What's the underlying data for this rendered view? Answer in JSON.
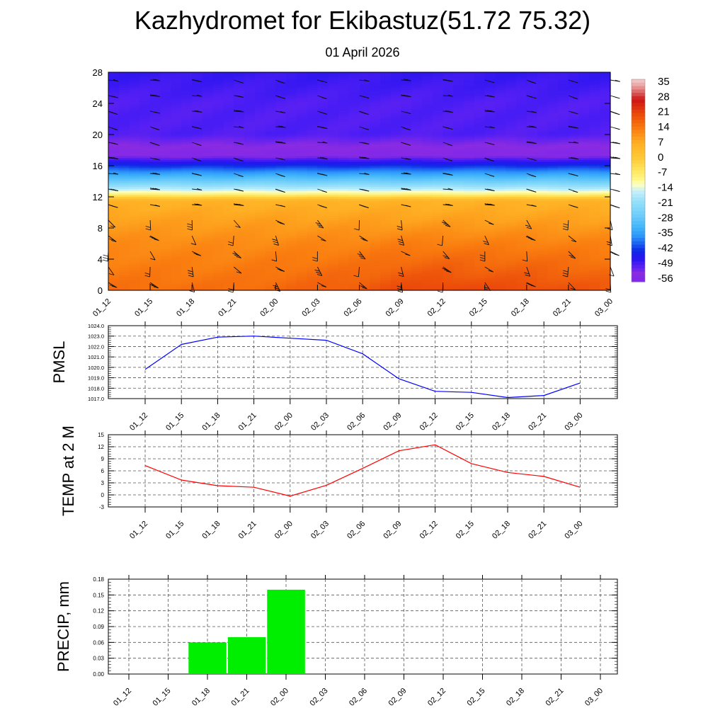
{
  "title": "Kazhydromet for Ekibastuz(51.72 75.32)",
  "subtitle": "01 April 2026",
  "time_labels": [
    "01_12",
    "01_15",
    "01_18",
    "01_21",
    "02_00",
    "02_03",
    "02_06",
    "02_09",
    "02_12",
    "02_15",
    "02_18",
    "02_21",
    "03_00"
  ],
  "chart_data": [
    {
      "type": "heatmap",
      "title": "",
      "ylabel": "",
      "ylim": [
        0,
        28
      ],
      "yticks": [
        0,
        4,
        8,
        12,
        16,
        20,
        24,
        28
      ],
      "x": [
        "01_12",
        "01_15",
        "01_18",
        "01_21",
        "02_00",
        "02_03",
        "02_06",
        "02_09",
        "02_12",
        "02_15",
        "02_18",
        "02_21",
        "03_00"
      ],
      "colorbar": {
        "labels": [
          "35",
          "28",
          "21",
          "14",
          "7",
          "0",
          "-7",
          "-14",
          "-21",
          "-28",
          "-35",
          "-42",
          "-49",
          "-56"
        ],
        "range": [
          -60,
          38
        ]
      },
      "profile_levels": [
        0,
        3,
        6,
        9,
        11.5,
        12.5,
        14,
        16,
        17.5,
        18.5,
        20,
        24,
        28
      ],
      "profile_temps": [
        16,
        14,
        12,
        9,
        6,
        -12,
        -28,
        -45,
        -58,
        -56,
        -52,
        -52,
        -50
      ],
      "surface_warm_anomaly": [
        0,
        0,
        0,
        0,
        1,
        2,
        3,
        5,
        6,
        5,
        5,
        4,
        3
      ],
      "wind_barbs": "present",
      "grid": false
    },
    {
      "type": "line",
      "ylabel": "PMSL",
      "ylim": [
        1017.0,
        1024.0
      ],
      "yticks": [
        "1017.0",
        "1018.0",
        "1019.0",
        "1020.0",
        "1021.0",
        "1022.0",
        "1023.0",
        "1024.0"
      ],
      "x": [
        "01_12",
        "01_15",
        "01_18",
        "01_21",
        "02_00",
        "02_03",
        "02_06",
        "02_09",
        "02_12",
        "02_15",
        "02_18",
        "02_21",
        "03_00"
      ],
      "series": [
        {
          "color": "#0000ff",
          "values": [
            1019.8,
            1022.2,
            1022.9,
            1023.0,
            1022.8,
            1022.6,
            1021.3,
            1018.9,
            1017.7,
            1017.6,
            1017.1,
            1017.3,
            1018.5
          ]
        }
      ],
      "grid": true
    },
    {
      "type": "line",
      "ylabel": "TEMP at 2 M",
      "ylim": [
        -3,
        15
      ],
      "yticks": [
        "-3",
        "0",
        "3",
        "6",
        "9",
        "12",
        "15"
      ],
      "x": [
        "01_12",
        "01_15",
        "01_18",
        "01_21",
        "02_00",
        "02_03",
        "02_06",
        "02_09",
        "02_12",
        "02_15",
        "02_18",
        "02_21",
        "03_00"
      ],
      "series": [
        {
          "color": "#ff0000",
          "values": [
            7.3,
            3.7,
            2.3,
            1.9,
            -0.3,
            2.4,
            6.6,
            11.0,
            12.5,
            7.8,
            5.6,
            4.6,
            1.9
          ]
        }
      ],
      "grid": true
    },
    {
      "type": "bar",
      "ylabel": "PRECIP, mm",
      "ylim": [
        0,
        0.18
      ],
      "yticks": [
        "0.00",
        "0.03",
        "0.06",
        "0.09",
        "0.12",
        "0.15",
        "0.18"
      ],
      "categories": [
        "01_12",
        "01_15",
        "01_18",
        "01_21",
        "02_00",
        "02_03",
        "02_06",
        "02_09",
        "02_12",
        "02_15",
        "02_18",
        "02_21",
        "03_00"
      ],
      "series": [
        {
          "color": "#00ee00",
          "values": [
            0,
            0,
            0.06,
            0.07,
            0.16,
            0,
            0,
            0,
            0,
            0,
            0,
            0,
            0
          ]
        }
      ],
      "grid": true
    }
  ]
}
